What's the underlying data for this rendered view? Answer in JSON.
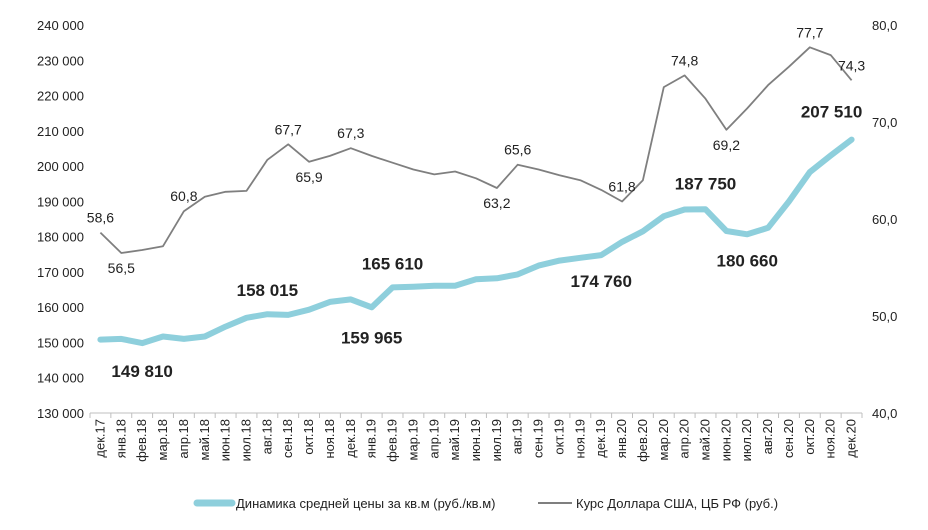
{
  "chart_data": {
    "type": "line",
    "categories": [
      "дек.17",
      "янв.18",
      "фев.18",
      "мар.18",
      "апр.18",
      "май.18",
      "июн.18",
      "июл.18",
      "авг.18",
      "сен.18",
      "окт.18",
      "ноя.18",
      "дек.18",
      "янв.19",
      "фев.19",
      "мар.19",
      "апр.19",
      "май.19",
      "июн.19",
      "июл.19",
      "авг.19",
      "сен.19",
      "окт.19",
      "ноя.19",
      "дек.19",
      "янв.20",
      "фев.20",
      "мар.20",
      "апр.20",
      "май.20",
      "июн.20",
      "июл.20",
      "авг.20",
      "сен.20",
      "окт.20",
      "ноя.20",
      "дек.20"
    ],
    "series": [
      {
        "name": "Динамика средней цены за кв.м (руб./кв.м)",
        "axis": "left",
        "color": "#8ECFDC",
        "values": [
          150800,
          151000,
          149810,
          151700,
          151000,
          151700,
          154500,
          157000,
          158015,
          157800,
          159300,
          161500,
          162200,
          159965,
          165610,
          165800,
          166100,
          166100,
          167900,
          168200,
          169300,
          171800,
          173200,
          174000,
          174760,
          178500,
          181500,
          185800,
          187700,
          187750,
          181600,
          180660,
          182500,
          190000,
          198300,
          203000,
          207510
        ],
        "labels": [
          {
            "index": 2,
            "text": "149 810"
          },
          {
            "index": 8,
            "text": "158 015"
          },
          {
            "index": 13,
            "text": "159 965"
          },
          {
            "index": 14,
            "text": "165 610"
          },
          {
            "index": 24,
            "text": "174 760"
          },
          {
            "index": 29,
            "text": "187 750"
          },
          {
            "index": 31,
            "text": "180 660"
          },
          {
            "index": 36,
            "text": "207 510"
          }
        ]
      },
      {
        "name": "Курс Доллара США, ЦБ РФ (руб.)",
        "axis": "right",
        "color": "#7F7F7F",
        "values": [
          58.6,
          56.5,
          56.8,
          57.2,
          60.8,
          62.3,
          62.8,
          62.9,
          66.1,
          67.7,
          65.9,
          66.5,
          67.3,
          66.5,
          65.8,
          65.1,
          64.6,
          64.9,
          64.2,
          63.2,
          65.6,
          65.1,
          64.5,
          64.0,
          63.0,
          61.8,
          64.0,
          73.6,
          74.8,
          72.4,
          69.2,
          71.4,
          73.8,
          75.7,
          77.7,
          76.9,
          74.3
        ],
        "labels": [
          {
            "index": 0,
            "text": "58,6"
          },
          {
            "index": 1,
            "text": "56,5"
          },
          {
            "index": 4,
            "text": "60,8"
          },
          {
            "index": 9,
            "text": "67,7"
          },
          {
            "index": 10,
            "text": "65,9"
          },
          {
            "index": 12,
            "text": "67,3"
          },
          {
            "index": 19,
            "text": "63,2"
          },
          {
            "index": 20,
            "text": "65,6"
          },
          {
            "index": 25,
            "text": "61,8"
          },
          {
            "index": 28,
            "text": "74,8"
          },
          {
            "index": 30,
            "text": "69,2"
          },
          {
            "index": 34,
            "text": "77,7"
          },
          {
            "index": 36,
            "text": "74,3"
          }
        ]
      }
    ],
    "y_left": {
      "min": 130000,
      "max": 240000,
      "step": 10000,
      "ticks": [
        "130 000",
        "140 000",
        "150 000",
        "160 000",
        "170 000",
        "180 000",
        "190 000",
        "200 000",
        "210 000",
        "220 000",
        "230 000",
        "240 000"
      ]
    },
    "y_right": {
      "min": 40,
      "max": 80,
      "step": 10,
      "ticks": [
        "40,0",
        "50,0",
        "60,0",
        "70,0",
        "80,0"
      ]
    },
    "title": "",
    "xlabel": "",
    "ylabel": "",
    "grid": false,
    "legend_position": "bottom"
  }
}
